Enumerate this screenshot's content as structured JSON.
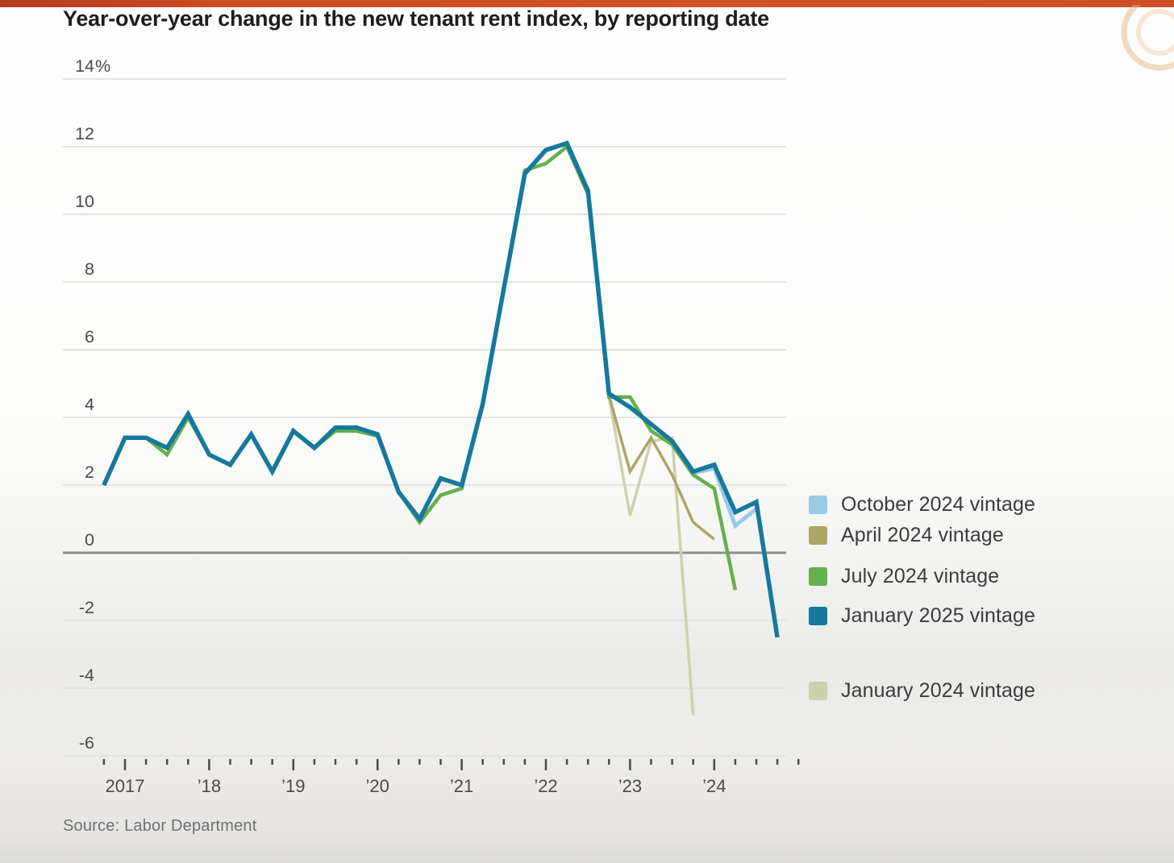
{
  "page": {
    "title": "Year-over-year change in the new tenant rent index, by reporting date",
    "source": "Source: Labor Department",
    "top_bar_color": "#cc4a24",
    "watermark_color": "#e2b079"
  },
  "chart_data": {
    "type": "line",
    "title": "Year-over-year change in the new tenant rent index, by reporting date",
    "xlabel": "",
    "ylabel": "",
    "y_unit": "%",
    "ylim": [
      -6.5,
      14.5
    ],
    "grid": true,
    "legend_position": "right",
    "zero_line": true,
    "y_ticks": [
      14,
      12,
      10,
      8,
      6,
      4,
      2,
      0,
      -2,
      -4,
      -6
    ],
    "y_tick_labels": [
      "14%",
      "12",
      "10",
      "8",
      "6",
      "4",
      "2",
      "0",
      "-2",
      "-4",
      "-6"
    ],
    "x_start_quarter": "2016Q4",
    "x_quarters_total": 34,
    "x_year_labels": [
      "2017",
      "’18",
      "’19",
      "’20",
      "’21",
      "’22",
      "’23",
      "’24"
    ],
    "x_year_tick_indices": [
      1,
      5,
      9,
      13,
      17,
      21,
      25,
      29
    ],
    "colors": {
      "grid": "#e3e3e0",
      "zero_line": "#8e8e8c",
      "tick": "#4a4a4a",
      "axis_label": "#4a4a4a"
    },
    "series": [
      {
        "id": "jan2024",
        "name": "January 2024 vintage",
        "color": "#cdd2ab",
        "stroke_width": 3.5,
        "start_index": 24,
        "start_quarter": "2022Q4",
        "values": [
          4.6,
          1.1,
          3.3,
          3.4,
          -4.8
        ]
      },
      {
        "id": "apr2024",
        "name": "April 2024 vintage",
        "color": "#aca666",
        "stroke_width": 3.5,
        "start_index": 24,
        "start_quarter": "2022Q4",
        "values": [
          4.65,
          2.4,
          3.4,
          2.3,
          0.9,
          0.4
        ]
      },
      {
        "id": "oct2024",
        "name": "October 2024 vintage",
        "color": "#99cbe8",
        "stroke_width": 5,
        "start_index": 27,
        "start_quarter": "2023Q3",
        "values": [
          3.3,
          2.35,
          2.5,
          0.8,
          1.3
        ]
      },
      {
        "id": "jul2024",
        "name": "July 2024 vintage",
        "color": "#65b04b",
        "stroke_width": 4.5,
        "start_index": 0,
        "start_quarter": "2016Q4",
        "values": [
          2.0,
          3.4,
          3.4,
          2.9,
          4.0,
          2.9,
          2.6,
          3.5,
          2.4,
          3.6,
          3.1,
          3.6,
          3.6,
          3.45,
          1.8,
          0.9,
          1.7,
          1.9,
          4.4,
          7.8,
          11.3,
          11.5,
          12.0,
          10.6,
          4.6,
          4.6,
          3.6,
          3.2,
          2.3,
          1.9,
          -1.1
        ]
      },
      {
        "id": "jan2025",
        "name": "January 2025 vintage",
        "color": "#16799c",
        "stroke_width": 5.5,
        "start_index": 0,
        "start_quarter": "2016Q4",
        "values": [
          2.0,
          3.4,
          3.4,
          3.1,
          4.1,
          2.9,
          2.6,
          3.5,
          2.4,
          3.6,
          3.1,
          3.7,
          3.7,
          3.5,
          1.8,
          1.0,
          2.2,
          2.0,
          4.4,
          7.8,
          11.2,
          11.9,
          12.1,
          10.7,
          4.7,
          4.3,
          3.8,
          3.3,
          2.4,
          2.6,
          1.2,
          1.5,
          -2.5
        ]
      }
    ]
  },
  "legend": {
    "items": [
      {
        "label": "October 2024 vintage",
        "color": "#99cbe8",
        "gap_before": 0
      },
      {
        "label": "April 2024 vintage",
        "color": "#aca666",
        "gap_before": 9
      },
      {
        "label": "July 2024 vintage",
        "color": "#65b04b",
        "gap_before": 22
      },
      {
        "label": "January 2025 vintage",
        "color": "#16799c",
        "gap_before": 20
      },
      {
        "label": "January 2024 vintage",
        "color": "#cdd2ab",
        "gap_before": 64
      }
    ]
  }
}
